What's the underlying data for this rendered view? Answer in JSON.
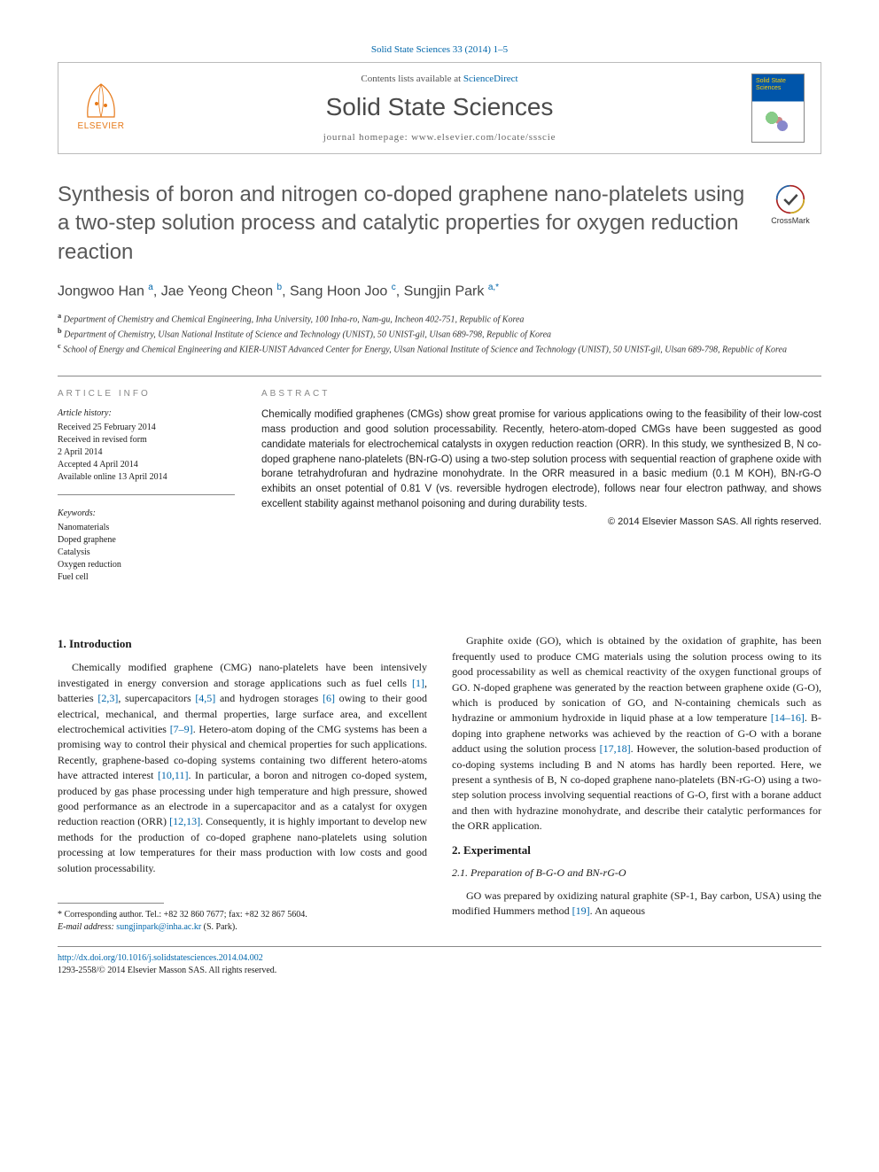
{
  "citation": "Solid State Sciences 33 (2014) 1–5",
  "header": {
    "contents_prefix": "Contents lists available at ",
    "contents_link": "ScienceDirect",
    "journal_name": "Solid State Sciences",
    "homepage_prefix": "journal homepage: ",
    "homepage_url": "www.elsevier.com/locate/ssscie",
    "publisher": "ELSEVIER"
  },
  "crossmark": "CrossMark",
  "title": "Synthesis of boron and nitrogen co-doped graphene nano-platelets using a two-step solution process and catalytic properties for oxygen reduction reaction",
  "authors_html": "Jongwoo Han <sup>a</sup>, Jae Yeong Cheon <sup>b</sup>, Sang Hoon Joo <sup>c</sup>, Sungjin Park <sup>a,*</sup>",
  "affiliations": {
    "a": "Department of Chemistry and Chemical Engineering, Inha University, 100 Inha-ro, Nam-gu, Incheon 402-751, Republic of Korea",
    "b": "Department of Chemistry, Ulsan National Institute of Science and Technology (UNIST), 50 UNIST-gil, Ulsan 689-798, Republic of Korea",
    "c": "School of Energy and Chemical Engineering and KIER-UNIST Advanced Center for Energy, Ulsan National Institute of Science and Technology (UNIST), 50 UNIST-gil, Ulsan 689-798, Republic of Korea"
  },
  "article_info": {
    "label": "ARTICLE INFO",
    "history_label": "Article history:",
    "history": [
      "Received 25 February 2014",
      "Received in revised form",
      "2 April 2014",
      "Accepted 4 April 2014",
      "Available online 13 April 2014"
    ],
    "keywords_label": "Keywords:",
    "keywords": [
      "Nanomaterials",
      "Doped graphene",
      "Catalysis",
      "Oxygen reduction",
      "Fuel cell"
    ]
  },
  "abstract": {
    "label": "ABSTRACT",
    "text": "Chemically modified graphenes (CMGs) show great promise for various applications owing to the feasibility of their low-cost mass production and good solution processability. Recently, hetero-atom-doped CMGs have been suggested as good candidate materials for electrochemical catalysts in oxygen reduction reaction (ORR). In this study, we synthesized B, N co-doped graphene nano-platelets (BN-rG-O) using a two-step solution process with sequential reaction of graphene oxide with borane tetrahydrofuran and hydrazine monohydrate. In the ORR measured in a basic medium (0.1 M KOH), BN-rG-O exhibits an onset potential of 0.81 V (vs. reversible hydrogen electrode), follows near four electron pathway, and shows excellent stability against methanol poisoning and during durability tests.",
    "copyright": "© 2014 Elsevier Masson SAS. All rights reserved."
  },
  "sections": {
    "intro_heading": "1. Introduction",
    "intro_p1": "Chemically modified graphene (CMG) nano-platelets have been intensively investigated in energy conversion and storage applications such as fuel cells [1], batteries [2,3], supercapacitors [4,5] and hydrogen storages [6] owing to their good electrical, mechanical, and thermal properties, large surface area, and excellent electrochemical activities [7–9]. Hetero-atom doping of the CMG systems has been a promising way to control their physical and chemical properties for such applications. Recently, graphene-based co-doping systems containing two different hetero-atoms have attracted interest [10,11]. In particular, a boron and nitrogen co-doped system, produced by gas phase processing under high temperature and high pressure, showed good performance as an electrode in a supercapacitor and as a catalyst for oxygen reduction reaction (ORR) [12,13]. Consequently, it is highly important to develop new methods for the production of co-doped graphene nano-platelets using solution processing at low temperatures for their mass production with low costs and good solution processability.",
    "intro_p2": "Graphite oxide (GO), which is obtained by the oxidation of graphite, has been frequently used to produce CMG materials using the solution process owing to its good processability as well as chemical reactivity of the oxygen functional groups of GO. N-doped graphene was generated by the reaction between graphene oxide (G-O), which is produced by sonication of GO, and N-containing chemicals such as hydrazine or ammonium hydroxide in liquid phase at a low temperature [14–16]. B-doping into graphene networks was achieved by the reaction of G-O with a borane adduct using the solution process [17,18]. However, the solution-based production of co-doping systems including B and N atoms has hardly been reported. Here, we present a synthesis of B, N co-doped graphene nano-platelets (BN-rG-O) using a two-step solution process involving sequential reactions of G-O, first with a borane adduct and then with hydrazine monohydrate, and describe their catalytic performances for the ORR application.",
    "exp_heading": "2. Experimental",
    "exp_sub_heading": "2.1. Preparation of B-G-O and BN-rG-O",
    "exp_p1": "GO was prepared by oxidizing natural graphite (SP-1, Bay carbon, USA) using the modified Hummers method [19]. An aqueous"
  },
  "footnote": {
    "corr": "* Corresponding author. Tel.: +82 32 860 7677; fax: +82 32 867 5604.",
    "email_label": "E-mail address: ",
    "email": "sungjinpark@inha.ac.kr",
    "email_suffix": " (S. Park)."
  },
  "footer": {
    "doi": "http://dx.doi.org/10.1016/j.solidstatesciences.2014.04.002",
    "issn_line": "1293-2558/© 2014 Elsevier Masson SAS. All rights reserved."
  },
  "refs": {
    "r1": "[1]",
    "r23": "[2,3]",
    "r45": "[4,5]",
    "r6": "[6]",
    "r79": "[7–9]",
    "r1011": "[10,11]",
    "r1213": "[12,13]",
    "r1416": "[14–16]",
    "r1718": "[17,18]",
    "r19": "[19]"
  },
  "colors": {
    "link": "#0066aa",
    "title_gray": "#585858",
    "orange": "#e67817",
    "rule": "#888888"
  }
}
